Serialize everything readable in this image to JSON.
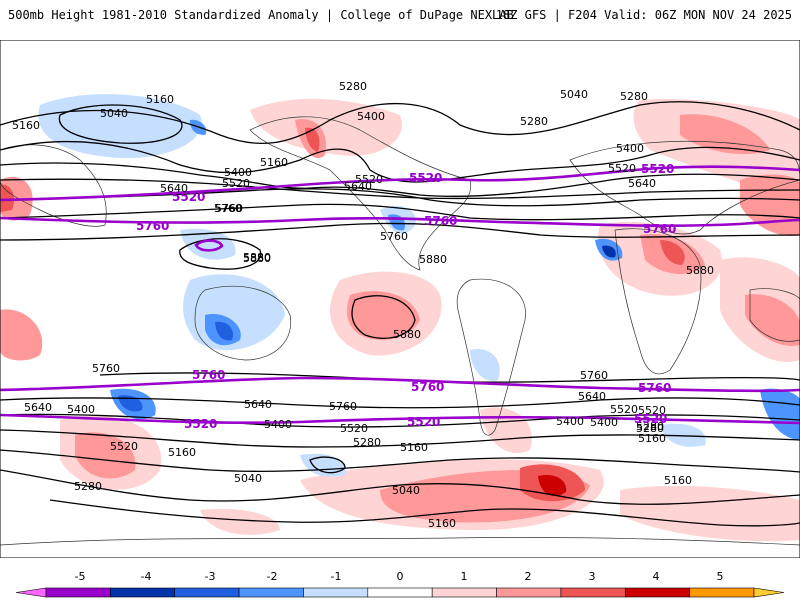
{
  "header": {
    "title": "500mb Height 1981-2010 Standardized Anomaly | College of DuPage NEXLAB",
    "run_info": "18Z GFS | F204 Valid: 06Z MON NOV 24 2025"
  },
  "colors": {
    "land_bg": "#ffffff",
    "coast": "#333333",
    "contour": "#000000",
    "highlight": "#9900cc",
    "scale": [
      "#ff66ff",
      "#9900cc",
      "#0033aa",
      "#1f5fe0",
      "#4d94ff",
      "#c6dfff",
      "#ffffff",
      "#ffd4d4",
      "#ff9999",
      "#ee5555",
      "#cc0000",
      "#ff9900",
      "#ffcc33"
    ]
  },
  "contour_labels": [
    "5160",
    "5040",
    "5280",
    "5400",
    "5520",
    "5640",
    "5760",
    "5880",
    "5160",
    "5040",
    "5280",
    "5160",
    "5400",
    "5520",
    "5640",
    "5760",
    "5880",
    "5760",
    "5640",
    "5520",
    "5400",
    "5280",
    "5160",
    "5040",
    "5160",
    "5280",
    "5400",
    "5520",
    "5640",
    "5760",
    "5160",
    "5040",
    "5160",
    "5280",
    "5520",
    "5400",
    "5640",
    "5760",
    "5880",
    "5880",
    "5880",
    "5280",
    "5400",
    "5520",
    "5640",
    "5760",
    "5520",
    "5400",
    "5160",
    "5280"
  ],
  "highlight_labels": [
    "5520",
    "5760",
    "5520",
    "5760",
    "5520",
    "5760",
    "5760",
    "5760",
    "5760",
    "5520",
    "5520",
    "5520"
  ],
  "legend": {
    "ticks": [
      "-5",
      "-4",
      "-3",
      "-2",
      "-1",
      "0",
      "1",
      "2",
      "3",
      "4",
      "5"
    ]
  }
}
